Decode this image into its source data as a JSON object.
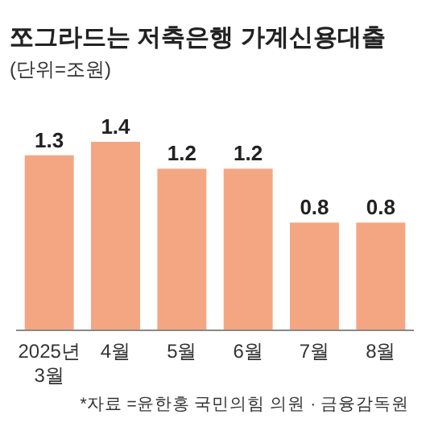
{
  "chart_data": {
    "type": "bar",
    "title": "쪼그라드는 저축은행 가계신용대출",
    "subtitle": "(단위=조원)",
    "categories": [
      "2025년\n3월",
      "4월",
      "5월",
      "6월",
      "7월",
      "8월"
    ],
    "values": [
      1.3,
      1.4,
      1.2,
      1.2,
      0.8,
      0.8
    ],
    "color": "#f4a683",
    "data_labels": true,
    "annotations": [
      "*자료 =윤한홍 국민의힘 의원 · 금융감독원"
    ]
  }
}
